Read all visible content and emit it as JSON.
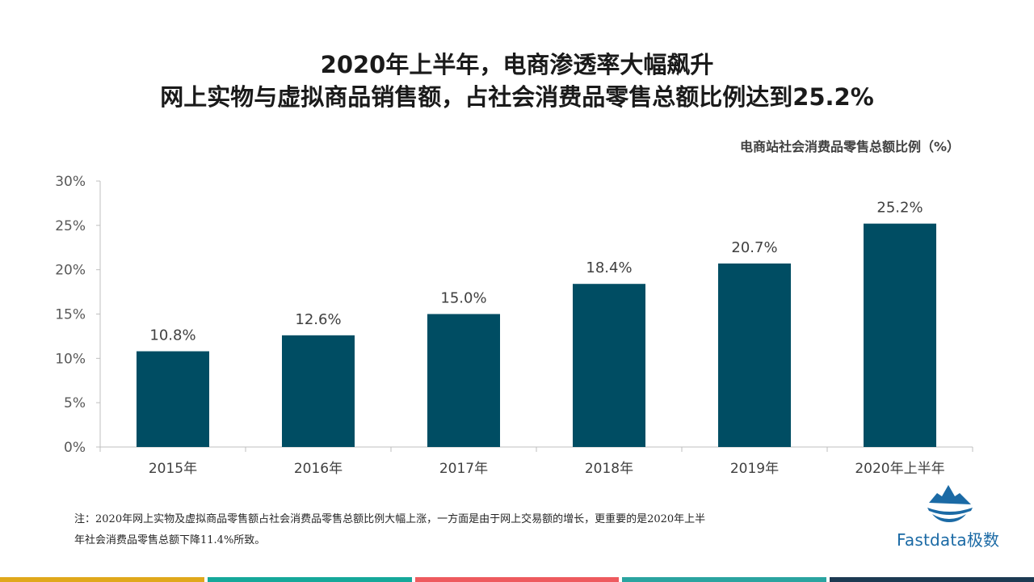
{
  "slide": {
    "title_line1": "2020年上半年，电商渗透率大幅飙升",
    "title_line2": "网上实物与虚拟商品销售额，占社会消费品零售总额比例达到25.2%",
    "chart_caption": "电商站社会消费品零售总额比例（%）",
    "note_line1": "注：2020年网上实物及虚拟商品零售额占社会消费品零售总额比例大幅上涨，一方面是由于网上交易额的增长，更重要的是2020年上半",
    "note_line2": "年社会消费品零售总额下降11.4%所致。",
    "logo_text": "Fastdata极数"
  },
  "colors": {
    "bar": "#004d63",
    "axis": "#bfbfbf",
    "logo": "#1b6aa5",
    "bottom_bar": [
      "#e0a81b",
      "#15a89a",
      "#ee5a5e",
      "#2aa4a0",
      "#1c3a52"
    ]
  },
  "chart_data": {
    "type": "bar",
    "categories": [
      "2015年",
      "2016年",
      "2017年",
      "2018年",
      "2019年",
      "2020年上半年"
    ],
    "values": [
      10.8,
      12.6,
      15.0,
      18.4,
      20.7,
      25.2
    ],
    "data_labels": [
      "10.8%",
      "12.6%",
      "15.0%",
      "18.4%",
      "20.7%",
      "25.2%"
    ],
    "ylim": [
      0,
      30
    ],
    "yticks": [
      0,
      5,
      10,
      15,
      20,
      25,
      30
    ],
    "ytick_labels": [
      "0%",
      "5%",
      "10%",
      "15%",
      "20%",
      "25%",
      "30%"
    ],
    "grid": false,
    "legend": "none"
  }
}
